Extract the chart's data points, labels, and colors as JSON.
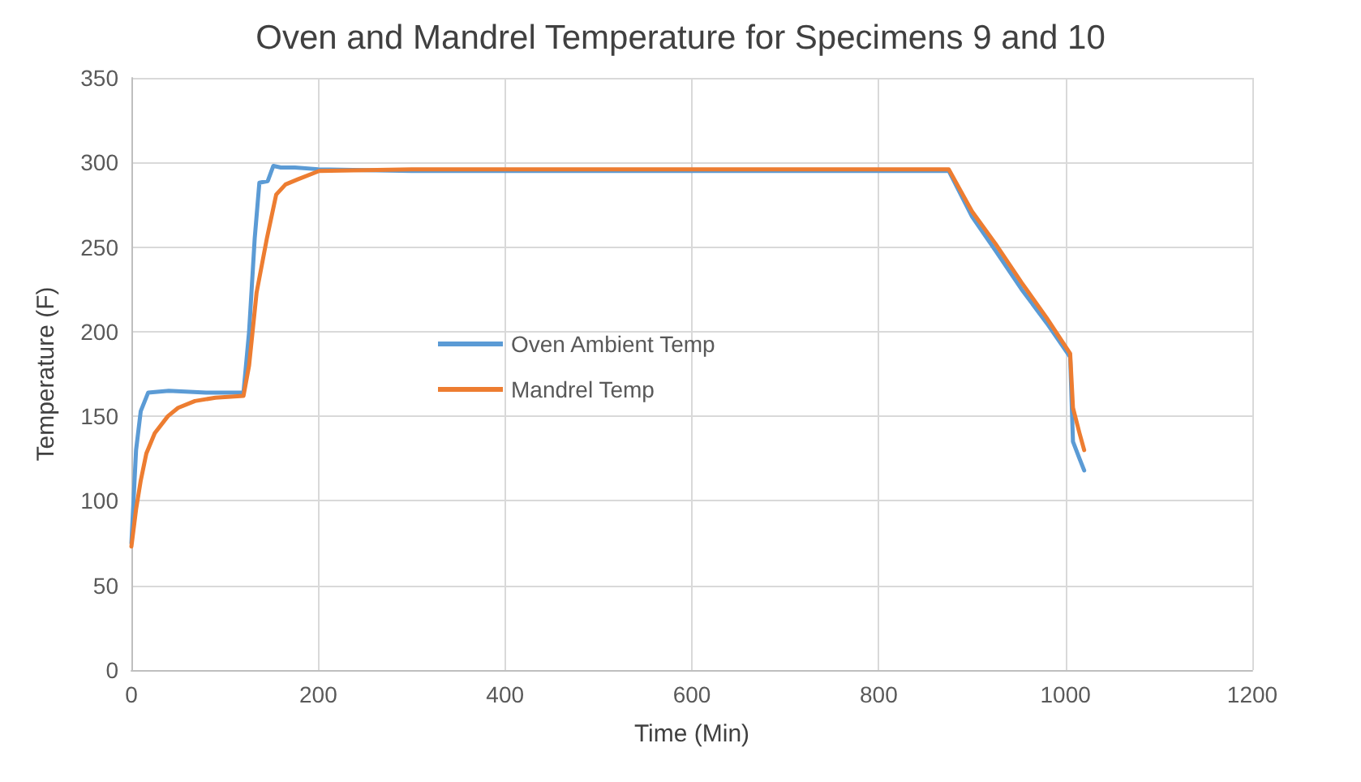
{
  "chart_data": {
    "type": "line",
    "title": "Oven and Mandrel Temperature for Specimens 9 and 10",
    "xlabel": "Time (Min)",
    "ylabel": "Temperature (F)",
    "xlim": [
      0,
      1200
    ],
    "xticks": [
      0,
      200,
      400,
      600,
      800,
      1000,
      1200
    ],
    "ylim": [
      0,
      350
    ],
    "yticks": [
      0,
      50,
      100,
      150,
      200,
      250,
      300,
      350
    ],
    "grid": true,
    "legend": "left",
    "marker": "none",
    "line_style": "solid",
    "series": [
      {
        "name": "Oven Ambient Temp",
        "color": "#5b9bd5",
        "x": [
          0,
          5,
          10,
          18,
          40,
          80,
          120,
          126,
          132,
          137,
          146,
          152,
          160,
          175,
          200,
          300,
          400,
          500,
          600,
          700,
          800,
          875,
          900,
          925,
          953,
          980,
          1005,
          1008,
          1015,
          1020
        ],
        "values": [
          75,
          130,
          153,
          164,
          165,
          164,
          164,
          200,
          255,
          288,
          289,
          298,
          297,
          297,
          296,
          295,
          295,
          295,
          295,
          295,
          295,
          295,
          268,
          248,
          225,
          205,
          185,
          135,
          125,
          118
        ]
      },
      {
        "name": "Mandrel Temp",
        "color": "#ed7d31",
        "x": [
          0,
          5,
          10,
          16,
          25,
          39,
          50,
          68,
          90,
          120,
          126,
          134,
          145,
          155,
          165,
          178,
          201,
          300,
          400,
          500,
          600,
          700,
          800,
          875,
          900,
          925,
          953,
          980,
          1005,
          1008,
          1015,
          1020
        ],
        "values": [
          73,
          95,
          112,
          128,
          140,
          150,
          155,
          159,
          161,
          162,
          180,
          223,
          255,
          281,
          287,
          290,
          295,
          296,
          296,
          296,
          296,
          296,
          296,
          296,
          271,
          252,
          229,
          208,
          187,
          155,
          140,
          130
        ]
      }
    ]
  }
}
